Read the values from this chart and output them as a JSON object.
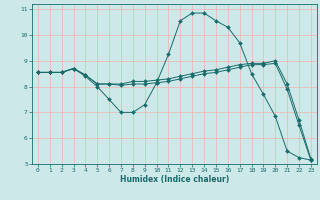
{
  "xlabel": "Humidex (Indice chaleur)",
  "bg_color": "#cce8e8",
  "grid_color": "#f0b0b0",
  "line_color": "#1a6b6b",
  "xlim": [
    -0.5,
    23.5
  ],
  "ylim": [
    5,
    11.2
  ],
  "xticks": [
    0,
    1,
    2,
    3,
    4,
    5,
    6,
    7,
    8,
    9,
    10,
    11,
    12,
    13,
    14,
    15,
    16,
    17,
    18,
    19,
    20,
    21,
    22,
    23
  ],
  "yticks": [
    5,
    6,
    7,
    8,
    9,
    10,
    11
  ],
  "lines": [
    {
      "x": [
        0,
        1,
        2,
        3,
        4,
        5,
        6,
        7,
        8,
        9,
        10,
        11,
        12,
        13,
        14,
        15,
        16,
        17,
        18,
        19,
        20,
        21,
        22,
        23
      ],
      "y": [
        8.55,
        8.55,
        8.55,
        8.7,
        8.4,
        8.0,
        7.5,
        7.0,
        7.0,
        7.3,
        8.15,
        9.25,
        10.55,
        10.85,
        10.85,
        10.55,
        10.3,
        9.7,
        8.5,
        7.7,
        6.85,
        5.5,
        5.25,
        5.15
      ]
    },
    {
      "x": [
        0,
        1,
        2,
        3,
        4,
        5,
        6,
        7,
        8,
        9,
        10,
        11,
        12,
        13,
        14,
        15,
        16,
        17,
        18,
        19,
        20,
        21,
        22,
        23
      ],
      "y": [
        8.55,
        8.55,
        8.55,
        8.7,
        8.45,
        8.1,
        8.1,
        8.1,
        8.2,
        8.2,
        8.25,
        8.3,
        8.4,
        8.5,
        8.6,
        8.65,
        8.75,
        8.85,
        8.9,
        8.9,
        9.0,
        8.1,
        6.7,
        5.2
      ]
    },
    {
      "x": [
        0,
        1,
        2,
        3,
        4,
        5,
        6,
        7,
        8,
        9,
        10,
        11,
        12,
        13,
        14,
        15,
        16,
        17,
        18,
        19,
        20,
        21,
        22,
        23
      ],
      "y": [
        8.55,
        8.55,
        8.55,
        8.7,
        8.45,
        8.1,
        8.1,
        8.05,
        8.1,
        8.1,
        8.15,
        8.2,
        8.3,
        8.4,
        8.5,
        8.55,
        8.65,
        8.75,
        8.85,
        8.85,
        8.9,
        7.9,
        6.5,
        5.15
      ]
    }
  ]
}
